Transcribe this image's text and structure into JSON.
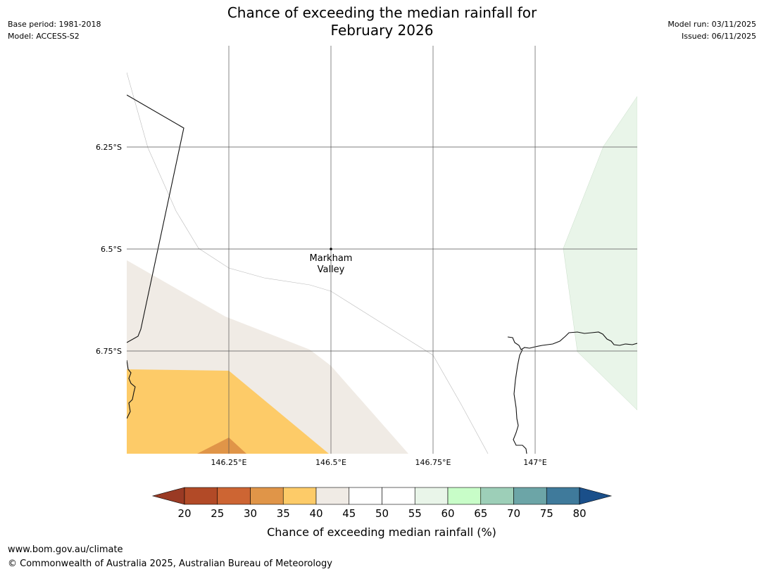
{
  "header": {
    "title_line1": "Chance of exceeding the median rainfall for",
    "title_line2": "February 2026",
    "base_period": "Base period: 1981-2018",
    "model": "Model: ACCESS-S2",
    "model_run": "Model run: 03/11/2025",
    "issued": "Issued: 06/11/2025"
  },
  "map": {
    "place_label_line1": "Markham",
    "place_label_line2": "Valley",
    "lat_labels": [
      "6.25°S",
      "6.5°S",
      "6.75°S"
    ],
    "lon_labels": [
      "146.25°E",
      "146.5°E",
      "146.75°E",
      "147°E"
    ]
  },
  "legend": {
    "title": "Chance of exceeding median rainfall (%)",
    "ticks": [
      "20",
      "25",
      "30",
      "35",
      "40",
      "45",
      "50",
      "55",
      "60",
      "65",
      "70",
      "75",
      "80"
    ],
    "bin_colors": [
      "#b24a27",
      "#cd6533",
      "#e09548",
      "#fdcb68",
      "#f0ebe5",
      "#ffffff",
      "#ffffff",
      "#e9f5e9",
      "#c8fdc8",
      "#9dcfb8",
      "#6ca5a7",
      "#3f7a9b"
    ],
    "under_color": "#9a3a24",
    "over_color": "#1a4f8a"
  },
  "footer": {
    "url": "www.bom.gov.au/climate",
    "copyright": "© Commonwealth of Australia 2025, Australian Bureau of Meteorology"
  }
}
